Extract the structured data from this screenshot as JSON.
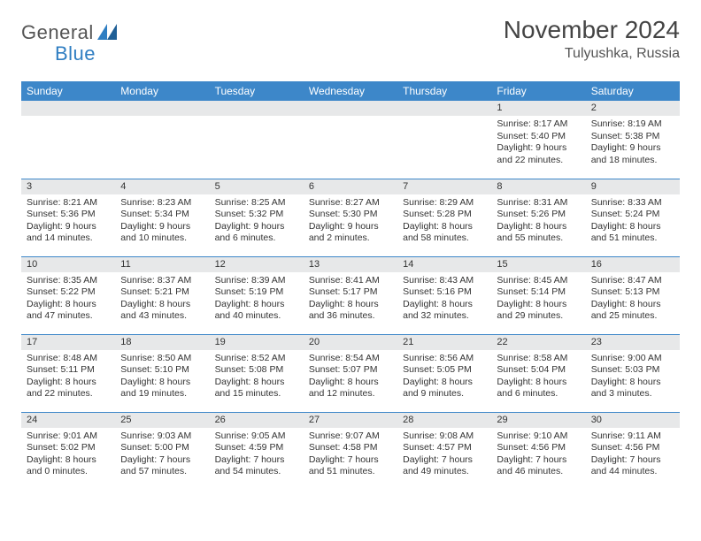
{
  "logo": {
    "text1": "General",
    "text2": "Blue"
  },
  "title": "November 2024",
  "subtitle": "Tulyushka, Russia",
  "colors": {
    "header_bg": "#3d87c9",
    "row_bg": "#e7e8e9",
    "border": "#3d87c9",
    "text": "#333333"
  },
  "weekdays": [
    "Sunday",
    "Monday",
    "Tuesday",
    "Wednesday",
    "Thursday",
    "Friday",
    "Saturday"
  ],
  "weeks": [
    [
      {
        "n": "",
        "lines": []
      },
      {
        "n": "",
        "lines": []
      },
      {
        "n": "",
        "lines": []
      },
      {
        "n": "",
        "lines": []
      },
      {
        "n": "",
        "lines": []
      },
      {
        "n": "1",
        "lines": [
          "Sunrise: 8:17 AM",
          "Sunset: 5:40 PM",
          "Daylight: 9 hours",
          "and 22 minutes."
        ]
      },
      {
        "n": "2",
        "lines": [
          "Sunrise: 8:19 AM",
          "Sunset: 5:38 PM",
          "Daylight: 9 hours",
          "and 18 minutes."
        ]
      }
    ],
    [
      {
        "n": "3",
        "lines": [
          "Sunrise: 8:21 AM",
          "Sunset: 5:36 PM",
          "Daylight: 9 hours",
          "and 14 minutes."
        ]
      },
      {
        "n": "4",
        "lines": [
          "Sunrise: 8:23 AM",
          "Sunset: 5:34 PM",
          "Daylight: 9 hours",
          "and 10 minutes."
        ]
      },
      {
        "n": "5",
        "lines": [
          "Sunrise: 8:25 AM",
          "Sunset: 5:32 PM",
          "Daylight: 9 hours",
          "and 6 minutes."
        ]
      },
      {
        "n": "6",
        "lines": [
          "Sunrise: 8:27 AM",
          "Sunset: 5:30 PM",
          "Daylight: 9 hours",
          "and 2 minutes."
        ]
      },
      {
        "n": "7",
        "lines": [
          "Sunrise: 8:29 AM",
          "Sunset: 5:28 PM",
          "Daylight: 8 hours",
          "and 58 minutes."
        ]
      },
      {
        "n": "8",
        "lines": [
          "Sunrise: 8:31 AM",
          "Sunset: 5:26 PM",
          "Daylight: 8 hours",
          "and 55 minutes."
        ]
      },
      {
        "n": "9",
        "lines": [
          "Sunrise: 8:33 AM",
          "Sunset: 5:24 PM",
          "Daylight: 8 hours",
          "and 51 minutes."
        ]
      }
    ],
    [
      {
        "n": "10",
        "lines": [
          "Sunrise: 8:35 AM",
          "Sunset: 5:22 PM",
          "Daylight: 8 hours",
          "and 47 minutes."
        ]
      },
      {
        "n": "11",
        "lines": [
          "Sunrise: 8:37 AM",
          "Sunset: 5:21 PM",
          "Daylight: 8 hours",
          "and 43 minutes."
        ]
      },
      {
        "n": "12",
        "lines": [
          "Sunrise: 8:39 AM",
          "Sunset: 5:19 PM",
          "Daylight: 8 hours",
          "and 40 minutes."
        ]
      },
      {
        "n": "13",
        "lines": [
          "Sunrise: 8:41 AM",
          "Sunset: 5:17 PM",
          "Daylight: 8 hours",
          "and 36 minutes."
        ]
      },
      {
        "n": "14",
        "lines": [
          "Sunrise: 8:43 AM",
          "Sunset: 5:16 PM",
          "Daylight: 8 hours",
          "and 32 minutes."
        ]
      },
      {
        "n": "15",
        "lines": [
          "Sunrise: 8:45 AM",
          "Sunset: 5:14 PM",
          "Daylight: 8 hours",
          "and 29 minutes."
        ]
      },
      {
        "n": "16",
        "lines": [
          "Sunrise: 8:47 AM",
          "Sunset: 5:13 PM",
          "Daylight: 8 hours",
          "and 25 minutes."
        ]
      }
    ],
    [
      {
        "n": "17",
        "lines": [
          "Sunrise: 8:48 AM",
          "Sunset: 5:11 PM",
          "Daylight: 8 hours",
          "and 22 minutes."
        ]
      },
      {
        "n": "18",
        "lines": [
          "Sunrise: 8:50 AM",
          "Sunset: 5:10 PM",
          "Daylight: 8 hours",
          "and 19 minutes."
        ]
      },
      {
        "n": "19",
        "lines": [
          "Sunrise: 8:52 AM",
          "Sunset: 5:08 PM",
          "Daylight: 8 hours",
          "and 15 minutes."
        ]
      },
      {
        "n": "20",
        "lines": [
          "Sunrise: 8:54 AM",
          "Sunset: 5:07 PM",
          "Daylight: 8 hours",
          "and 12 minutes."
        ]
      },
      {
        "n": "21",
        "lines": [
          "Sunrise: 8:56 AM",
          "Sunset: 5:05 PM",
          "Daylight: 8 hours",
          "and 9 minutes."
        ]
      },
      {
        "n": "22",
        "lines": [
          "Sunrise: 8:58 AM",
          "Sunset: 5:04 PM",
          "Daylight: 8 hours",
          "and 6 minutes."
        ]
      },
      {
        "n": "23",
        "lines": [
          "Sunrise: 9:00 AM",
          "Sunset: 5:03 PM",
          "Daylight: 8 hours",
          "and 3 minutes."
        ]
      }
    ],
    [
      {
        "n": "24",
        "lines": [
          "Sunrise: 9:01 AM",
          "Sunset: 5:02 PM",
          "Daylight: 8 hours",
          "and 0 minutes."
        ]
      },
      {
        "n": "25",
        "lines": [
          "Sunrise: 9:03 AM",
          "Sunset: 5:00 PM",
          "Daylight: 7 hours",
          "and 57 minutes."
        ]
      },
      {
        "n": "26",
        "lines": [
          "Sunrise: 9:05 AM",
          "Sunset: 4:59 PM",
          "Daylight: 7 hours",
          "and 54 minutes."
        ]
      },
      {
        "n": "27",
        "lines": [
          "Sunrise: 9:07 AM",
          "Sunset: 4:58 PM",
          "Daylight: 7 hours",
          "and 51 minutes."
        ]
      },
      {
        "n": "28",
        "lines": [
          "Sunrise: 9:08 AM",
          "Sunset: 4:57 PM",
          "Daylight: 7 hours",
          "and 49 minutes."
        ]
      },
      {
        "n": "29",
        "lines": [
          "Sunrise: 9:10 AM",
          "Sunset: 4:56 PM",
          "Daylight: 7 hours",
          "and 46 minutes."
        ]
      },
      {
        "n": "30",
        "lines": [
          "Sunrise: 9:11 AM",
          "Sunset: 4:56 PM",
          "Daylight: 7 hours",
          "and 44 minutes."
        ]
      }
    ]
  ]
}
